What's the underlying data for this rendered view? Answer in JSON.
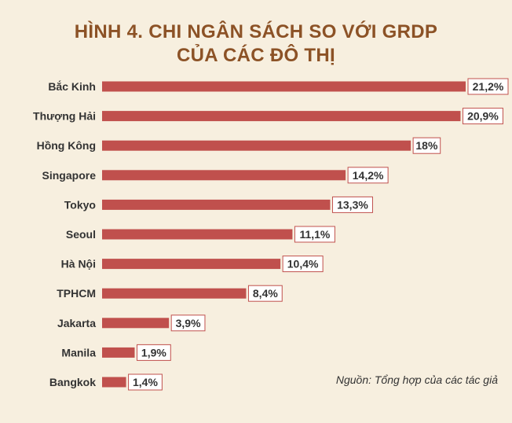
{
  "colors": {
    "background": "#f7efdf",
    "bar": "#c0504d",
    "label_border": "#c0504d",
    "label_fill": "#ffffff",
    "title": "#8c5226",
    "text": "#333333"
  },
  "chart_data": {
    "type": "bar",
    "orientation": "horizontal",
    "title": "HÌNH 4. CHI NGÂN SÁCH SO VỚI GRDP",
    "subtitle": "CỦA CÁC ĐÔ THỊ",
    "xlabel": "",
    "ylabel": "",
    "categories": [
      "Bắc Kinh",
      "Thượng Hải",
      "Hồng Kông",
      "Singapore",
      "Tokyo",
      "Seoul",
      "Hà Nội",
      "TPHCM",
      "Jakarta",
      "Manila",
      "Bangkok"
    ],
    "values": [
      21.2,
      20.9,
      18,
      14.2,
      13.3,
      11.1,
      10.4,
      8.4,
      3.9,
      1.9,
      1.4
    ],
    "value_labels": [
      "21,2%",
      "20,9%",
      "18%",
      "14,2%",
      "13,3%",
      "11,1%",
      "10,4%",
      "8,4%",
      "3,9%",
      "1,9%",
      "1,4%"
    ],
    "xlim": [
      0,
      21.2
    ],
    "grid": false,
    "legend": "none"
  },
  "source": "Nguồn: Tổng hợp của các tác giả"
}
